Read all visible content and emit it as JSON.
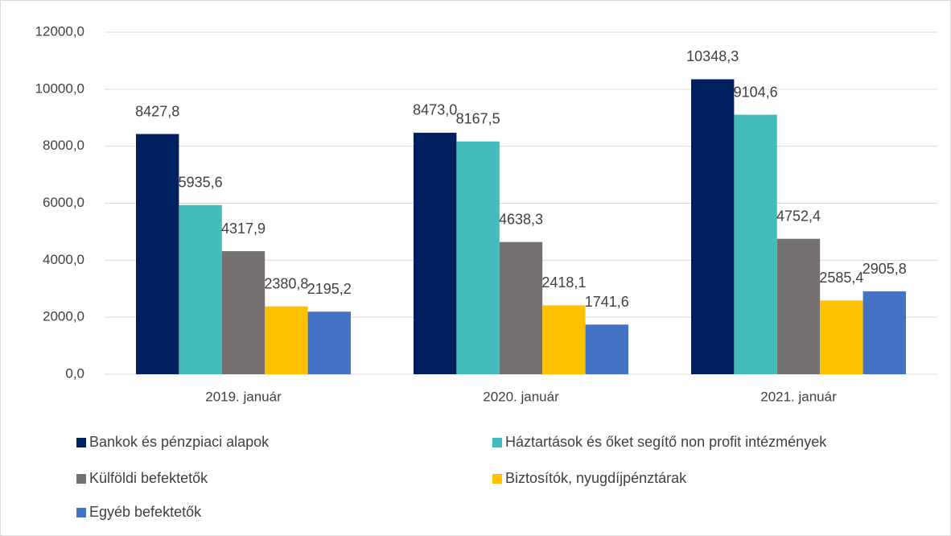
{
  "chart_data": {
    "type": "bar",
    "categories": [
      "2019. január",
      "2020. január",
      "2021. január"
    ],
    "series": [
      {
        "name": "Bankok és pénzpiaci alapok",
        "color": "#002060",
        "values": [
          8427.8,
          8473.0,
          10348.3
        ],
        "value_labels": [
          "8427,8",
          "8473,0",
          "10348,3"
        ]
      },
      {
        "name": "Háztartások és őket segítő non profit intézmények",
        "color": "#45BCBC",
        "values": [
          5935.6,
          8167.5,
          9104.6
        ],
        "value_labels": [
          "5935,6",
          "8167,5",
          "9104,6"
        ]
      },
      {
        "name": "Külföldi befektetők",
        "color": "#767171",
        "values": [
          4317.9,
          4638.3,
          4752.4
        ],
        "value_labels": [
          "4317,9",
          "4638,3",
          "4752,4"
        ]
      },
      {
        "name": "Biztosítók, nyugdíjpénztárak",
        "color": "#FFC000",
        "values": [
          2380.8,
          2418.1,
          2585.4
        ],
        "value_labels": [
          "2380,8",
          "2418,1",
          "2585,4"
        ]
      },
      {
        "name": "Egyéb befektetők",
        "color": "#4472C4",
        "values": [
          2195.2,
          1741.6,
          2905.8
        ],
        "value_labels": [
          "2195,2",
          "1741,6",
          "2905,8"
        ]
      }
    ],
    "ylim": [
      0,
      12000
    ],
    "yticks": [
      {
        "value": 0,
        "label": "0,0"
      },
      {
        "value": 2000,
        "label": "2000,0"
      },
      {
        "value": 4000,
        "label": "4000,0"
      },
      {
        "value": 6000,
        "label": "6000,0"
      },
      {
        "value": 8000,
        "label": "8000,0"
      },
      {
        "value": 10000,
        "label": "10000,0"
      },
      {
        "value": 12000,
        "label": "12000,0"
      }
    ],
    "grid": true,
    "legend": "bottom"
  }
}
